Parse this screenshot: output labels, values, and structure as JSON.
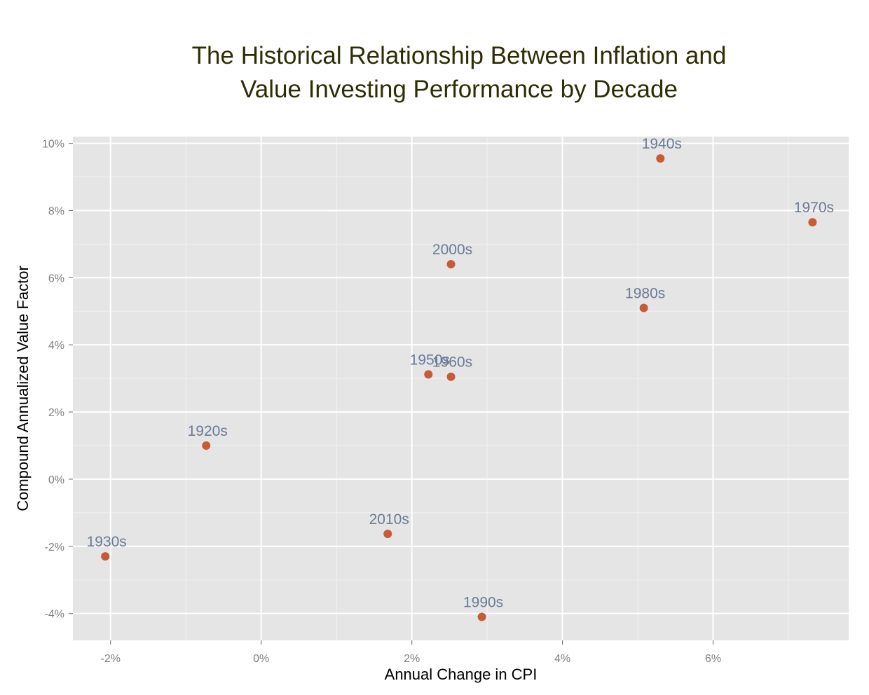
{
  "chart_data": {
    "type": "scatter",
    "title_lines": [
      "The Historical Relationship Between Inflation and",
      "Value Investing Performance by Decade"
    ],
    "xlabel": "Annual Change in CPI",
    "ylabel": "Compound Annualized Value Factor",
    "xlim": [
      -2.5,
      7.8
    ],
    "ylim": [
      -4.8,
      10.2
    ],
    "x_ticks": [
      {
        "value": -2,
        "label": "-2%"
      },
      {
        "value": 0,
        "label": "0%"
      },
      {
        "value": 2,
        "label": "2%"
      },
      {
        "value": 4,
        "label": "4%"
      },
      {
        "value": 6,
        "label": "6%"
      }
    ],
    "y_ticks": [
      {
        "value": -4,
        "label": "-4%"
      },
      {
        "value": -2,
        "label": "-2%"
      },
      {
        "value": 0,
        "label": "0%"
      },
      {
        "value": 2,
        "label": "2%"
      },
      {
        "value": 4,
        "label": "4%"
      },
      {
        "value": 6,
        "label": "6%"
      },
      {
        "value": 8,
        "label": "8%"
      },
      {
        "value": 10,
        "label": "10%"
      }
    ],
    "grid": true,
    "legend": "none",
    "points": [
      {
        "label": "1920s",
        "x": -0.73,
        "y": 1.0
      },
      {
        "label": "1930s",
        "x": -2.07,
        "y": -2.3
      },
      {
        "label": "1940s",
        "x": 5.3,
        "y": 9.55
      },
      {
        "label": "1950s",
        "x": 2.22,
        "y": 3.12
      },
      {
        "label": "1960s",
        "x": 2.52,
        "y": 3.05
      },
      {
        "label": "1970s",
        "x": 7.32,
        "y": 7.65
      },
      {
        "label": "1980s",
        "x": 5.08,
        "y": 5.1
      },
      {
        "label": "1990s",
        "x": 2.93,
        "y": -4.1
      },
      {
        "label": "2000s",
        "x": 2.52,
        "y": 6.4
      },
      {
        "label": "2010s",
        "x": 1.68,
        "y": -1.63
      }
    ],
    "colors": {
      "panel": "#e5e5e5",
      "grid_major": "#ffffff",
      "grid_minor": "#f2f2f2",
      "point": "#c65b35",
      "point_label": "#6b7a96",
      "tick_label": "#7f7f7f",
      "title": "#2e2e06"
    }
  }
}
